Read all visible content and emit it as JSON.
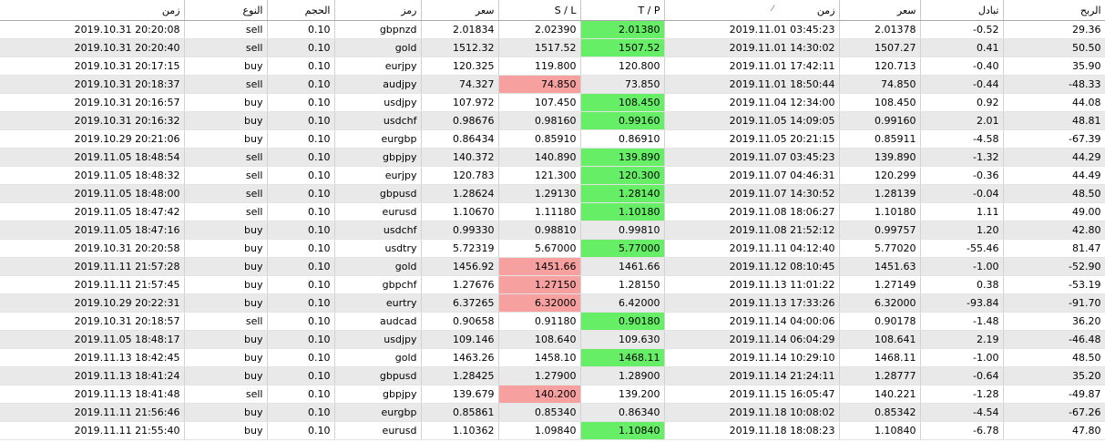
{
  "colors": {
    "tp_hit": "#66ee66",
    "sl_hit": "#f6a0a0",
    "alt_row": "#e9e9e9"
  },
  "headers": {
    "open_time": "زمن",
    "type": "النوع",
    "volume": "الحجم",
    "symbol": "رمز",
    "open_price": "سعر",
    "sl": "S / L",
    "tp": "T / P",
    "close_time": "زمن",
    "close_price": "سعر",
    "swap": "تبادل",
    "profit": "الربح"
  },
  "rows": [
    {
      "open_time": "2019.10.31 20:20:08",
      "type": "sell",
      "volume": "0.10",
      "symbol": "gbpnzd",
      "open_price": "2.01834",
      "sl": "2.02390",
      "tp": "2.01380",
      "close_time": "2019.11.01 03:45:23",
      "close_price": "2.01378",
      "swap": "-0.52",
      "profit": "29.36",
      "hit": "tp"
    },
    {
      "open_time": "2019.10.31 20:20:40",
      "type": "sell",
      "volume": "0.10",
      "symbol": "gold",
      "open_price": "1512.32",
      "sl": "1517.52",
      "tp": "1507.52",
      "close_time": "2019.11.01 14:30:02",
      "close_price": "1507.27",
      "swap": "0.41",
      "profit": "50.50",
      "hit": "tp"
    },
    {
      "open_time": "2019.10.31 20:17:15",
      "type": "buy",
      "volume": "0.10",
      "symbol": "eurjpy",
      "open_price": "120.325",
      "sl": "119.800",
      "tp": "120.800",
      "close_time": "2019.11.01 17:42:11",
      "close_price": "120.713",
      "swap": "-0.40",
      "profit": "35.90",
      "hit": ""
    },
    {
      "open_time": "2019.10.31 20:18:37",
      "type": "sell",
      "volume": "0.10",
      "symbol": "audjpy",
      "open_price": "74.327",
      "sl": "74.850",
      "tp": "73.850",
      "close_time": "2019.11.01 18:50:44",
      "close_price": "74.850",
      "swap": "-0.44",
      "profit": "-48.33",
      "hit": "sl"
    },
    {
      "open_time": "2019.10.31 20:16:57",
      "type": "buy",
      "volume": "0.10",
      "symbol": "usdjpy",
      "open_price": "107.972",
      "sl": "107.450",
      "tp": "108.450",
      "close_time": "2019.11.04 12:34:00",
      "close_price": "108.450",
      "swap": "0.92",
      "profit": "44.08",
      "hit": "tp"
    },
    {
      "open_time": "2019.10.31 20:16:32",
      "type": "buy",
      "volume": "0.10",
      "symbol": "usdchf",
      "open_price": "0.98676",
      "sl": "0.98160",
      "tp": "0.99160",
      "close_time": "2019.11.05 14:09:05",
      "close_price": "0.99160",
      "swap": "2.01",
      "profit": "48.81",
      "hit": "tp"
    },
    {
      "open_time": "2019.10.29 20:21:06",
      "type": "buy",
      "volume": "0.10",
      "symbol": "eurgbp",
      "open_price": "0.86434",
      "sl": "0.85910",
      "tp": "0.86910",
      "close_time": "2019.11.05 20:21:15",
      "close_price": "0.85911",
      "swap": "-4.58",
      "profit": "-67.39",
      "hit": ""
    },
    {
      "open_time": "2019.11.05 18:48:54",
      "type": "sell",
      "volume": "0.10",
      "symbol": "gbpjpy",
      "open_price": "140.372",
      "sl": "140.890",
      "tp": "139.890",
      "close_time": "2019.11.07 03:45:23",
      "close_price": "139.890",
      "swap": "-1.32",
      "profit": "44.29",
      "hit": "tp"
    },
    {
      "open_time": "2019.11.05 18:48:32",
      "type": "sell",
      "volume": "0.10",
      "symbol": "eurjpy",
      "open_price": "120.783",
      "sl": "121.300",
      "tp": "120.300",
      "close_time": "2019.11.07 04:46:31",
      "close_price": "120.299",
      "swap": "-0.36",
      "profit": "44.49",
      "hit": "tp"
    },
    {
      "open_time": "2019.11.05 18:48:00",
      "type": "sell",
      "volume": "0.10",
      "symbol": "gbpusd",
      "open_price": "1.28624",
      "sl": "1.29130",
      "tp": "1.28140",
      "close_time": "2019.11.07 14:30:52",
      "close_price": "1.28139",
      "swap": "-0.04",
      "profit": "48.50",
      "hit": "tp"
    },
    {
      "open_time": "2019.11.05 18:47:42",
      "type": "sell",
      "volume": "0.10",
      "symbol": "eurusd",
      "open_price": "1.10670",
      "sl": "1.11180",
      "tp": "1.10180",
      "close_time": "2019.11.08 18:06:27",
      "close_price": "1.10180",
      "swap": "1.11",
      "profit": "49.00",
      "hit": "tp"
    },
    {
      "open_time": "2019.11.05 18:47:16",
      "type": "buy",
      "volume": "0.10",
      "symbol": "usdchf",
      "open_price": "0.99330",
      "sl": "0.98810",
      "tp": "0.99810",
      "close_time": "2019.11.08 21:52:12",
      "close_price": "0.99757",
      "swap": "1.20",
      "profit": "42.80",
      "hit": ""
    },
    {
      "open_time": "2019.10.31 20:20:58",
      "type": "buy",
      "volume": "0.10",
      "symbol": "usdtry",
      "open_price": "5.72319",
      "sl": "5.67000",
      "tp": "5.77000",
      "close_time": "2019.11.11 04:12:40",
      "close_price": "5.77020",
      "swap": "-55.46",
      "profit": "81.47",
      "hit": "tp"
    },
    {
      "open_time": "2019.11.11 21:57:28",
      "type": "buy",
      "volume": "0.10",
      "symbol": "gold",
      "open_price": "1456.92",
      "sl": "1451.66",
      "tp": "1461.66",
      "close_time": "2019.11.12 08:10:45",
      "close_price": "1451.63",
      "swap": "-1.00",
      "profit": "-52.90",
      "hit": "sl"
    },
    {
      "open_time": "2019.11.11 21:57:45",
      "type": "buy",
      "volume": "0.10",
      "symbol": "gbpchf",
      "open_price": "1.27676",
      "sl": "1.27150",
      "tp": "1.28150",
      "close_time": "2019.11.13 11:01:22",
      "close_price": "1.27149",
      "swap": "0.38",
      "profit": "-53.19",
      "hit": "sl"
    },
    {
      "open_time": "2019.10.29 20:22:31",
      "type": "buy",
      "volume": "0.10",
      "symbol": "eurtry",
      "open_price": "6.37265",
      "sl": "6.32000",
      "tp": "6.42000",
      "close_time": "2019.11.13 17:33:26",
      "close_price": "6.32000",
      "swap": "-93.84",
      "profit": "-91.70",
      "hit": "sl"
    },
    {
      "open_time": "2019.10.31 20:18:57",
      "type": "sell",
      "volume": "0.10",
      "symbol": "audcad",
      "open_price": "0.90658",
      "sl": "0.91180",
      "tp": "0.90180",
      "close_time": "2019.11.14 04:00:06",
      "close_price": "0.90178",
      "swap": "-1.48",
      "profit": "36.20",
      "hit": "tp"
    },
    {
      "open_time": "2019.11.05 18:48:17",
      "type": "buy",
      "volume": "0.10",
      "symbol": "usdjpy",
      "open_price": "109.146",
      "sl": "108.640",
      "tp": "109.630",
      "close_time": "2019.11.14 06:04:29",
      "close_price": "108.641",
      "swap": "2.19",
      "profit": "-46.48",
      "hit": ""
    },
    {
      "open_time": "2019.11.13 18:42:45",
      "type": "buy",
      "volume": "0.10",
      "symbol": "gold",
      "open_price": "1463.26",
      "sl": "1458.10",
      "tp": "1468.11",
      "close_time": "2019.11.14 10:29:10",
      "close_price": "1468.11",
      "swap": "-1.00",
      "profit": "48.50",
      "hit": "tp"
    },
    {
      "open_time": "2019.11.13 18:41:24",
      "type": "buy",
      "volume": "0.10",
      "symbol": "gbpusd",
      "open_price": "1.28425",
      "sl": "1.27900",
      "tp": "1.28900",
      "close_time": "2019.11.14 21:24:11",
      "close_price": "1.28777",
      "swap": "-0.64",
      "profit": "35.20",
      "hit": ""
    },
    {
      "open_time": "2019.11.13 18:41:48",
      "type": "sell",
      "volume": "0.10",
      "symbol": "gbpjpy",
      "open_price": "139.679",
      "sl": "140.200",
      "tp": "139.200",
      "close_time": "2019.11.15 16:05:47",
      "close_price": "140.221",
      "swap": "-1.28",
      "profit": "-49.87",
      "hit": "sl"
    },
    {
      "open_time": "2019.11.11 21:56:46",
      "type": "buy",
      "volume": "0.10",
      "symbol": "eurgbp",
      "open_price": "0.85861",
      "sl": "0.85340",
      "tp": "0.86340",
      "close_time": "2019.11.18 10:08:02",
      "close_price": "0.85342",
      "swap": "-4.54",
      "profit": "-67.26",
      "hit": ""
    },
    {
      "open_time": "2019.11.11 21:55:40",
      "type": "buy",
      "volume": "0.10",
      "symbol": "eurusd",
      "open_price": "1.10362",
      "sl": "1.09840",
      "tp": "1.10840",
      "close_time": "2019.11.18 18:08:23",
      "close_price": "1.10840",
      "swap": "-6.78",
      "profit": "47.80",
      "hit": "tp"
    }
  ]
}
